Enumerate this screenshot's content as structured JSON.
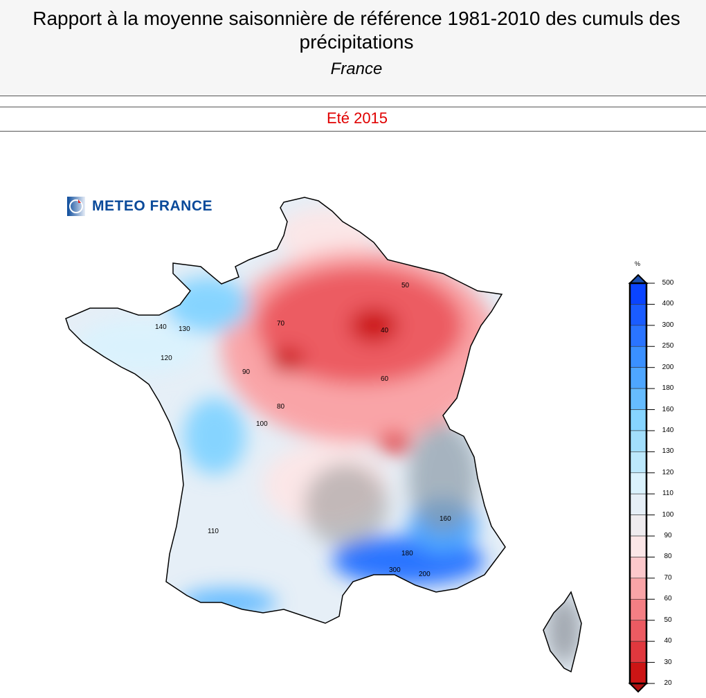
{
  "header": {
    "title": "Rapport à la moyenne saisonnière de référence 1981-2010 des cumuls des précipitations",
    "subtitle": "France",
    "period": "Eté 2015"
  },
  "logo": {
    "text": "METEO FRANCE"
  },
  "legend": {
    "unit": "%",
    "ticks": [
      "500",
      "400",
      "300",
      "250",
      "200",
      "180",
      "160",
      "140",
      "130",
      "120",
      "110",
      "100",
      "90",
      "80",
      "70",
      "60",
      "50",
      "40",
      "30",
      "20"
    ],
    "colors": [
      "#0a44ff",
      "#1a5cff",
      "#2a74ff",
      "#3a90ff",
      "#4ea6ff",
      "#66bcff",
      "#86d4ff",
      "#a2defc",
      "#bce8fc",
      "#daf2fd",
      "#e6eff7",
      "#efecef",
      "#fbe6e7",
      "#fcc8cb",
      "#f9a4a7",
      "#f47f84",
      "#ec5b62",
      "#e0383e",
      "#cc1515"
    ],
    "over_color": "#1c4fb0",
    "under_color": "#b01010"
  },
  "map": {
    "contour_labels": [
      "50",
      "40",
      "60",
      "70",
      "80",
      "90",
      "100",
      "110",
      "120",
      "130",
      "140",
      "160",
      "180",
      "200",
      "300"
    ]
  }
}
